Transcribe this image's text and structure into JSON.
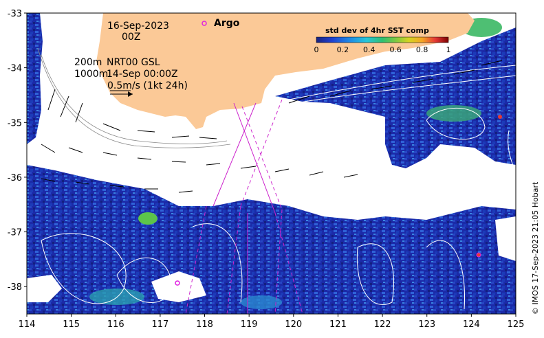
{
  "map": {
    "lon_range": [
      114,
      125
    ],
    "lat_range": [
      -38.5,
      -33
    ],
    "lon_ticks": [
      "114",
      "115",
      "116",
      "117",
      "118",
      "119",
      "120",
      "121",
      "122",
      "123",
      "124",
      "125"
    ],
    "lat_ticks": [
      "-33",
      "-34",
      "-35",
      "-36",
      "-37",
      "-38"
    ],
    "colors": {
      "land": "#fbc997",
      "no_data": "#ffffff",
      "sst_low": "#1c2fb4",
      "sst_mid": "#2a7fd6",
      "sst_high": "#3ec25a",
      "contour": "#ffffff",
      "argo_track": "#cc22cc",
      "argo_marker": "#e020e0",
      "vectors": "#000000"
    }
  },
  "annotations": {
    "date": "16-Sep-2023",
    "hour": "00Z",
    "argo_label": "Argo",
    "depth_line1": "200m",
    "product_line1": "NRT00 GSL",
    "depth_line2": "1000m",
    "product_line2": "14-Sep 00:00Z",
    "scale_label": "0.5m/s (1kt 24h)"
  },
  "colorbar": {
    "title": "std dev of 4hr SST comp",
    "ticks": [
      "0",
      "0.2",
      "0.4",
      "0.6",
      "0.8",
      "1"
    ],
    "range": [
      0,
      1
    ]
  },
  "credit": "© IMOS 17-Sep-2023 21:05 Hobart"
}
